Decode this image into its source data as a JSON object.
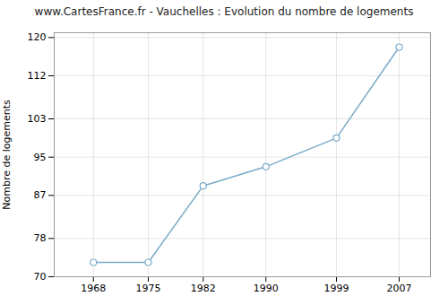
{
  "chart_data": {
    "type": "line",
    "title": "www.CartesFrance.fr - Vauchelles : Evolution du nombre de logements",
    "ylabel": "Nombre de logements",
    "x": [
      1968,
      1975,
      1982,
      1990,
      1999,
      2007
    ],
    "values": [
      73,
      73,
      89,
      93,
      99,
      118
    ],
    "xlim": [
      1963,
      2011
    ],
    "xticks": [
      1968,
      1975,
      1982,
      1990,
      1999,
      2007
    ],
    "ylim": [
      70,
      121
    ],
    "yticks": [
      70,
      78,
      87,
      95,
      103,
      112,
      120
    ],
    "color": "#7aaac8",
    "marker": "circle",
    "grid": true
  }
}
